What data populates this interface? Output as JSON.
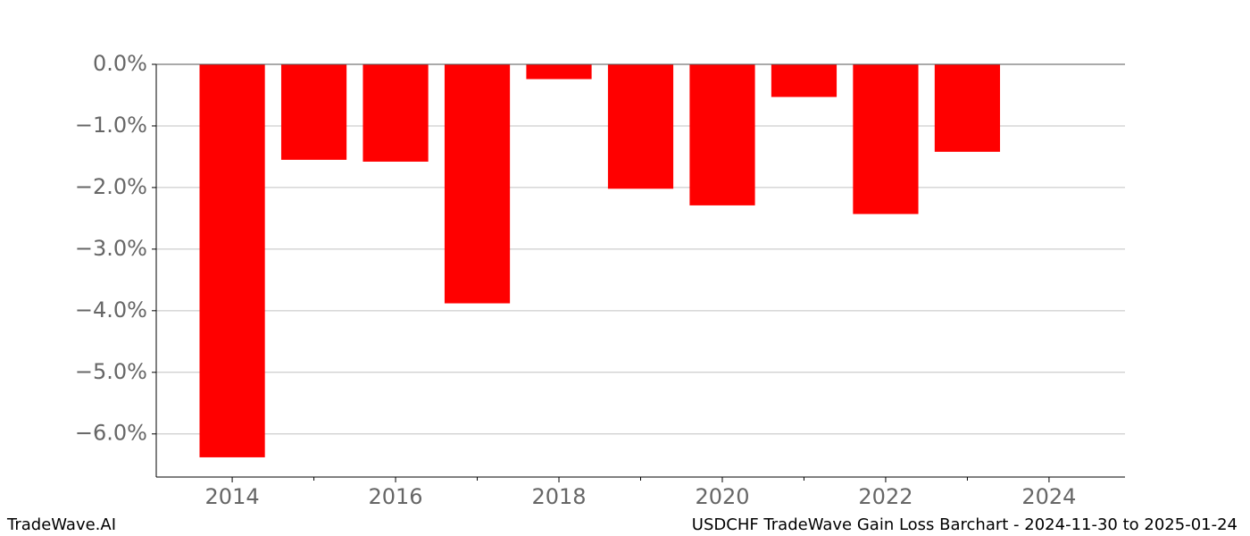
{
  "chart_data": {
    "type": "bar",
    "title": "USDCHF TradeWave Gain Loss Barchart - 2024-11-30 to 2025-01-24",
    "watermark": "TradeWave.AI",
    "x": [
      2014,
      2015,
      2016,
      2017,
      2018,
      2019,
      2020,
      2021,
      2022,
      2023
    ],
    "values": [
      -6.38,
      -1.55,
      -1.58,
      -3.88,
      -0.24,
      -2.02,
      -2.29,
      -0.53,
      -2.43,
      -1.42
    ],
    "color": "#ff0000",
    "xlim": [
      2013.07,
      2024.93
    ],
    "xticks": [
      2014,
      2016,
      2018,
      2020,
      2022,
      2024
    ],
    "minor_xticks": [
      2015,
      2017,
      2019,
      2021,
      2023
    ],
    "ylim": [
      -6.7,
      0
    ],
    "yticks": [
      {
        "value": 0,
        "label": "0.0%"
      },
      {
        "value": -1,
        "label": "−1.0%"
      },
      {
        "value": -2,
        "label": "−2.0%"
      },
      {
        "value": -3,
        "label": "−3.0%"
      },
      {
        "value": -4,
        "label": "−4.0%"
      },
      {
        "value": -5,
        "label": "−5.0%"
      },
      {
        "value": -6,
        "label": "−6.0%"
      }
    ],
    "grid": true
  }
}
